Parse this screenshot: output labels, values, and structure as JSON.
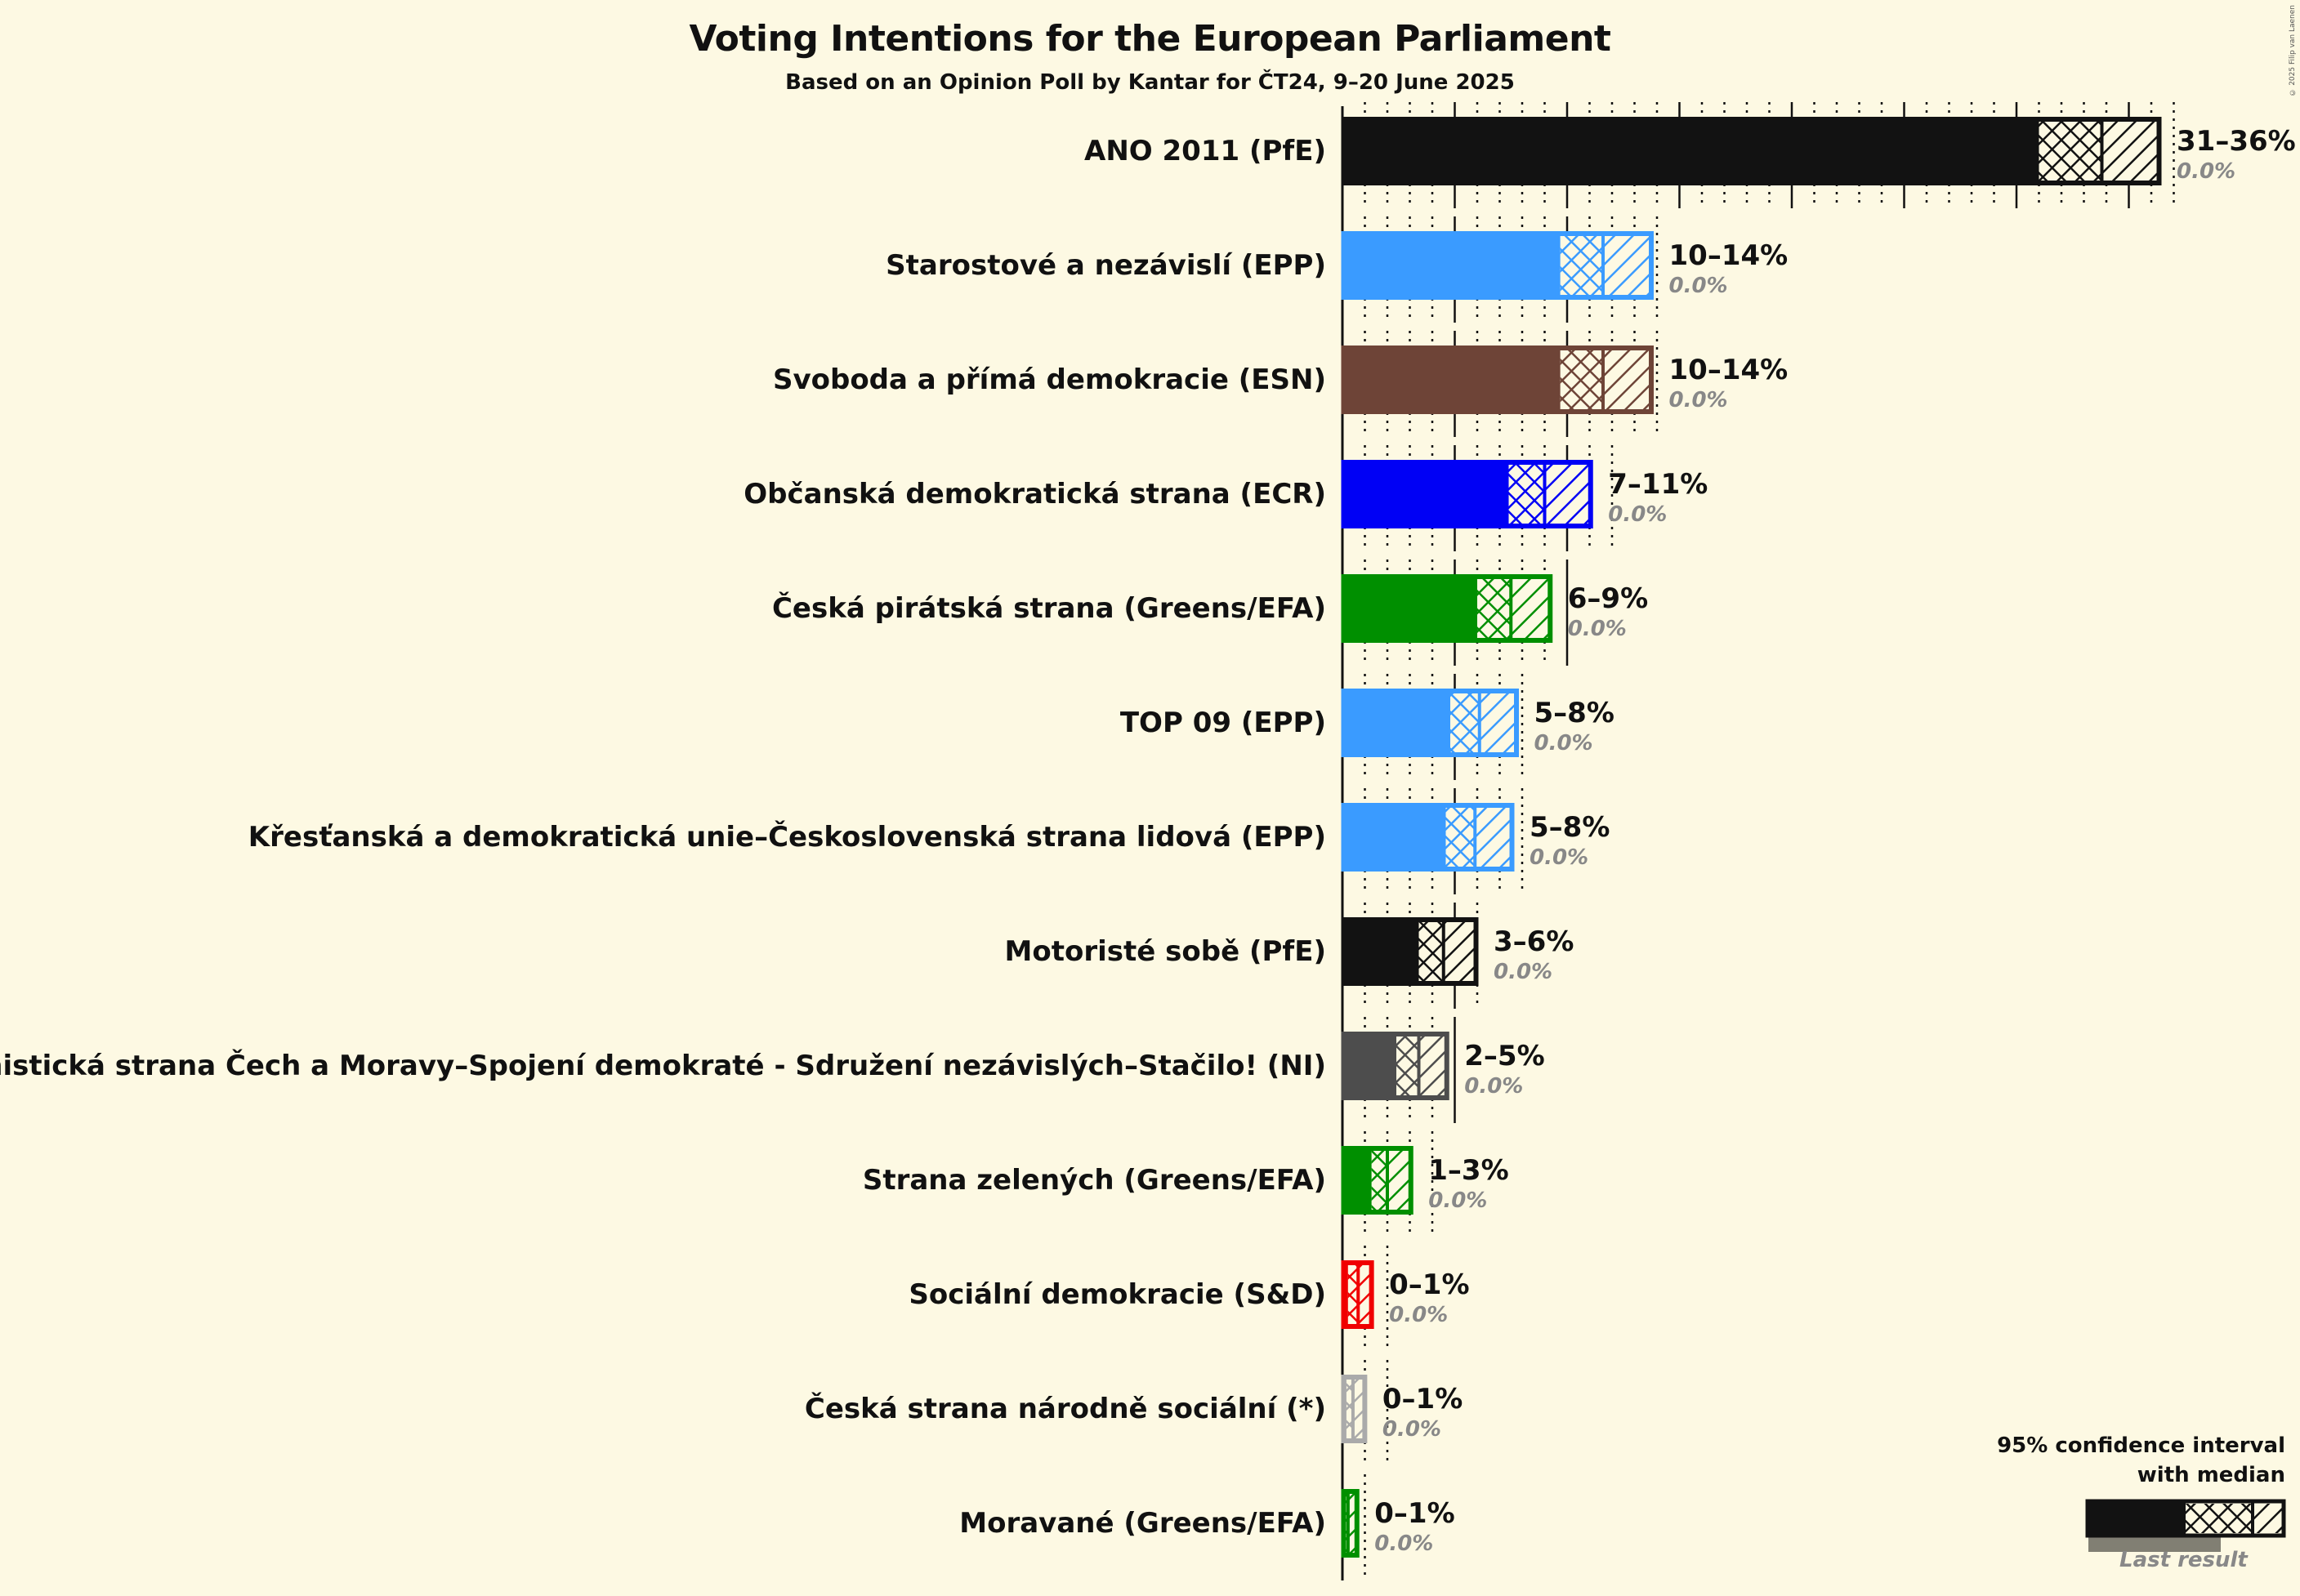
{
  "chart_data": {
    "type": "bar",
    "orientation": "horizontal",
    "title": "Voting Intentions for the European Parliament",
    "subtitle": "Based on an Opinion Poll by Kantar for ČT24, 9–20 June 2025",
    "xlabel": "",
    "ylabel": "",
    "x_unit": "%",
    "grid": {
      "major_every": 5,
      "minor_every": 1
    },
    "legend": {
      "title_line1": "95% confidence interval",
      "title_line2": "with median",
      "last_result": "Last result",
      "position": "bottom-right"
    },
    "copyright": "© 2025 Filip van Laenen",
    "categories": [
      "ANO 2011 (PfE)",
      "Starostové a nezávislí (EPP)",
      "Svoboda a přímá demokracie (ESN)",
      "Občanská demokratická strana (ECR)",
      "Česká pirátská strana (Greens/EFA)",
      "TOP 09 (EPP)",
      "Křesťanská a demokratická unie–Československá strana lidová (EPP)",
      "Motoristé sobě (PfE)",
      "Komunistická strana Čech a Moravy–Spojení demokraté - Sdružení nezávislých–Stačilo! (NI)",
      "Strana zelených (Greens/EFA)",
      "Sociální demokracie (S&D)",
      "Česká strana národně sociální (*)",
      "Moravané (Greens/EFA)"
    ],
    "series": [
      {
        "name": "ANO 2011 (PfE)",
        "color": "#121212",
        "ci_low": 31,
        "median": 33.8,
        "ci_high": 36.4,
        "range_label": "31–36%",
        "last_result": "0.0%"
      },
      {
        "name": "Starostové a nezávislí (EPP)",
        "color": "#3a9bff",
        "ci_low": 9.7,
        "median": 11.6,
        "ci_high": 13.8,
        "range_label": "10–14%",
        "last_result": "0.0%"
      },
      {
        "name": "Svoboda a přímá demokracie (ESN)",
        "color": "#6e4437",
        "ci_low": 9.7,
        "median": 11.6,
        "ci_high": 13.8,
        "range_label": "10–14%",
        "last_result": "0.0%"
      },
      {
        "name": "Občanská demokratická strana (ECR)",
        "color": "#0000f5",
        "ci_low": 7.4,
        "median": 9.0,
        "ci_high": 11.1,
        "range_label": "7–11%",
        "last_result": "0.0%"
      },
      {
        "name": "Česká pirátská strana (Greens/EFA)",
        "color": "#008f00",
        "ci_low": 6.0,
        "median": 7.5,
        "ci_high": 9.3,
        "range_label": "6–9%",
        "last_result": "0.0%"
      },
      {
        "name": "TOP 09 (EPP)",
        "color": "#3a9bff",
        "ci_low": 4.8,
        "median": 6.1,
        "ci_high": 7.8,
        "range_label": "5–8%",
        "last_result": "0.0%"
      },
      {
        "name": "Křesťanská a demokratická unie–Československá strana lidová (EPP)",
        "color": "#3a9bff",
        "ci_low": 4.6,
        "median": 5.9,
        "ci_high": 7.6,
        "range_label": "5–8%",
        "last_result": "0.0%"
      },
      {
        "name": "Motoristé sobě (PfE)",
        "color": "#121212",
        "ci_low": 3.4,
        "median": 4.5,
        "ci_high": 6.0,
        "range_label": "3–6%",
        "last_result": "0.0%"
      },
      {
        "name": "Komunistická strana Čech a Moravy–Spojení demokraté - Sdružení nezávislých–Stačilo! (NI)",
        "color": "#4d4d4d",
        "ci_low": 2.4,
        "median": 3.4,
        "ci_high": 4.7,
        "range_label": "2–5%",
        "last_result": "0.0%"
      },
      {
        "name": "Strana zelených (Greens/EFA)",
        "color": "#008f00",
        "ci_low": 1.3,
        "median": 2.0,
        "ci_high": 3.1,
        "range_label": "1–3%",
        "last_result": "0.0%"
      },
      {
        "name": "Sociální demokracie (S&D)",
        "color": "#f00000",
        "ci_low": 0.25,
        "median": 0.7,
        "ci_high": 1.35,
        "range_label": "0–1%",
        "last_result": "0.0%"
      },
      {
        "name": "Česká strana národně sociální (*)",
        "color": "#aaaaaa",
        "ci_low": 0.18,
        "median": 0.47,
        "ci_high": 1.05,
        "range_label": "0–1%",
        "last_result": "0.0%"
      },
      {
        "name": "Moravané (Greens/EFA)",
        "color": "#008f00",
        "ci_low": 0.1,
        "median": 0.25,
        "ci_high": 0.7,
        "range_label": "0–1%",
        "last_result": "0.0%"
      }
    ],
    "xlim": [
      0,
      37
    ]
  }
}
